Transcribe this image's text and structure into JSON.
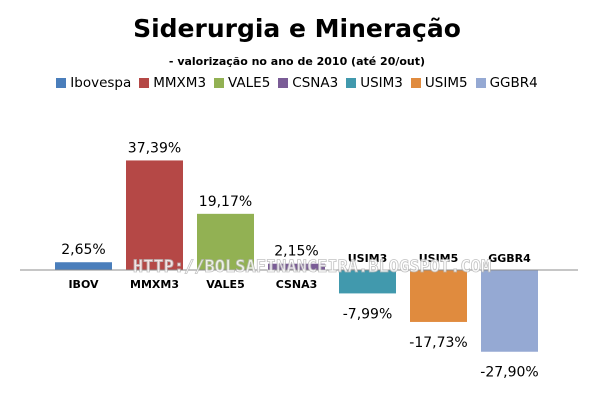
{
  "chart_data": {
    "type": "bar",
    "title": "Siderurgia e Mineração",
    "subtitle": "- valorização no ano de 2010 (até 20/out)",
    "categories": [
      "IBOV",
      "MMXM3",
      "VALE5",
      "CSNA3",
      "USIM3",
      "USIM5",
      "GGBR4"
    ],
    "value_labels": [
      "2,65%",
      "37,39%",
      "19,17%",
      "2,15%",
      "-7,99%",
      "-17,73%",
      "-27,90%"
    ],
    "series": [
      {
        "name": "Ibovespa",
        "value": 2.65,
        "color": "#4a7ebb"
      },
      {
        "name": "MMXM3",
        "value": 37.39,
        "color": "#b54846"
      },
      {
        "name": "VALE5",
        "value": 19.17,
        "color": "#92b153"
      },
      {
        "name": "CSNA3",
        "value": 2.15,
        "color": "#7a5c96"
      },
      {
        "name": "USIM3",
        "value": -7.99,
        "color": "#4199ad"
      },
      {
        "name": "USIM5",
        "value": -17.73,
        "color": "#e08b3e"
      },
      {
        "name": "GGBR4",
        "value": -27.9,
        "color": "#95a9d3"
      }
    ],
    "ylim": [
      -32,
      40
    ],
    "grid": false,
    "legend": "top",
    "watermark": "HTTP://BOLSAFINANCEIRA.BLOGSPOT.COM"
  }
}
